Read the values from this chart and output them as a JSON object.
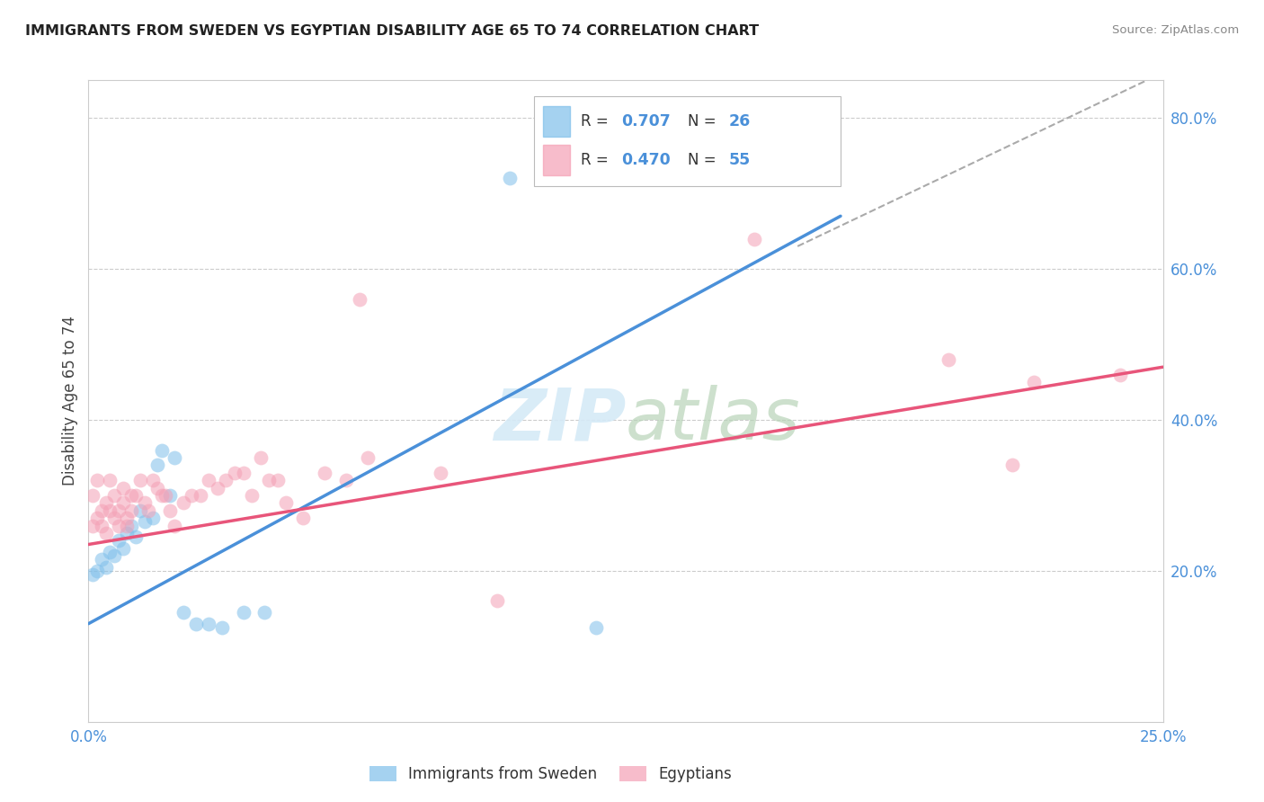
{
  "title": "IMMIGRANTS FROM SWEDEN VS EGYPTIAN DISABILITY AGE 65 TO 74 CORRELATION CHART",
  "source": "Source: ZipAtlas.com",
  "ylabel": "Disability Age 65 to 74",
  "xlim": [
    0.0,
    0.25
  ],
  "ylim": [
    0.0,
    0.85
  ],
  "background_color": "#ffffff",
  "grid_color": "#cccccc",
  "blue_color": "#7fbfea",
  "pink_color": "#f4a0b5",
  "blue_line_color": "#4a90d9",
  "pink_line_color": "#e8557a",
  "dashed_line_color": "#aaaaaa",
  "tick_color": "#4a90d9",
  "title_color": "#222222",
  "source_color": "#888888",
  "ylabel_color": "#444444",
  "watermark_color": "#d5eaf7",
  "sweden_x": [
    0.001,
    0.002,
    0.003,
    0.004,
    0.005,
    0.006,
    0.007,
    0.008,
    0.009,
    0.01,
    0.011,
    0.012,
    0.013,
    0.015,
    0.016,
    0.017,
    0.019,
    0.02,
    0.022,
    0.025,
    0.028,
    0.031,
    0.036,
    0.041,
    0.098,
    0.118
  ],
  "sweden_y": [
    0.195,
    0.2,
    0.215,
    0.205,
    0.225,
    0.22,
    0.24,
    0.23,
    0.25,
    0.26,
    0.245,
    0.28,
    0.265,
    0.27,
    0.34,
    0.36,
    0.3,
    0.35,
    0.145,
    0.13,
    0.13,
    0.125,
    0.145,
    0.145,
    0.72,
    0.125
  ],
  "egypt_x": [
    0.001,
    0.001,
    0.002,
    0.002,
    0.003,
    0.003,
    0.004,
    0.004,
    0.005,
    0.005,
    0.006,
    0.006,
    0.007,
    0.007,
    0.008,
    0.008,
    0.009,
    0.009,
    0.01,
    0.01,
    0.011,
    0.012,
    0.013,
    0.014,
    0.015,
    0.016,
    0.017,
    0.018,
    0.019,
    0.02,
    0.022,
    0.024,
    0.026,
    0.028,
    0.03,
    0.032,
    0.034,
    0.036,
    0.038,
    0.04,
    0.042,
    0.044,
    0.046,
    0.05,
    0.055,
    0.06,
    0.063,
    0.065,
    0.082,
    0.095,
    0.155,
    0.2,
    0.215,
    0.22,
    0.24
  ],
  "egypt_y": [
    0.26,
    0.3,
    0.27,
    0.32,
    0.26,
    0.28,
    0.25,
    0.29,
    0.28,
    0.32,
    0.27,
    0.3,
    0.26,
    0.28,
    0.29,
    0.31,
    0.26,
    0.27,
    0.3,
    0.28,
    0.3,
    0.32,
    0.29,
    0.28,
    0.32,
    0.31,
    0.3,
    0.3,
    0.28,
    0.26,
    0.29,
    0.3,
    0.3,
    0.32,
    0.31,
    0.32,
    0.33,
    0.33,
    0.3,
    0.35,
    0.32,
    0.32,
    0.29,
    0.27,
    0.33,
    0.32,
    0.56,
    0.35,
    0.33,
    0.16,
    0.64,
    0.48,
    0.34,
    0.45,
    0.46
  ],
  "blue_line_x": [
    0.0,
    0.175
  ],
  "blue_line_y": [
    0.13,
    0.67
  ],
  "dash_line_x": [
    0.165,
    0.25
  ],
  "dash_line_y": [
    0.63,
    0.86
  ],
  "pink_line_x": [
    0.0,
    0.25
  ],
  "pink_line_y": [
    0.235,
    0.47
  ]
}
